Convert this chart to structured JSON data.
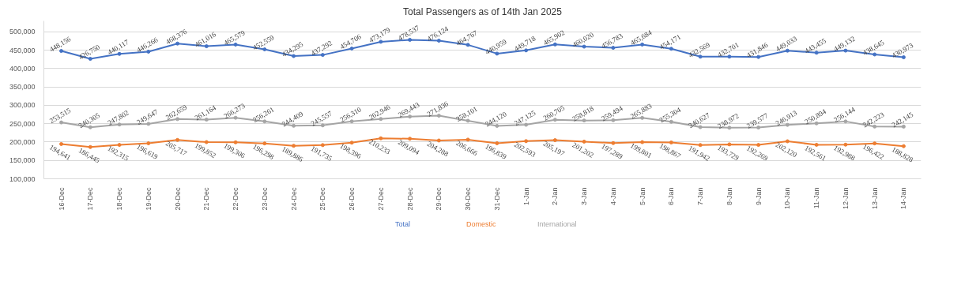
{
  "chart_data": {
    "type": "line",
    "title": "Total Passengers as of 14th Jan 2025",
    "categories": [
      "16-Dec",
      "17-Dec",
      "18-Dec",
      "19-Dec",
      "20-Dec",
      "21-Dec",
      "22-Dec",
      "23-Dec",
      "24-Dec",
      "25-Dec",
      "26-Dec",
      "27-Dec",
      "28-Dec",
      "29-Dec",
      "30-Dec",
      "31-Dec",
      "1-Jan",
      "2-Jan",
      "3-Jan",
      "4-Jan",
      "5-Jan",
      "6-Jan",
      "7-Jan",
      "8-Jan",
      "9-Jan",
      "10-Jan",
      "11-Jan",
      "12-Jan",
      "13-Jan",
      "14-Jan"
    ],
    "series": [
      {
        "name": "Total",
        "color": "#4472c4",
        "values": [
          448156,
          426750,
          440117,
          446266,
          468376,
          461016,
          465579,
          452559,
          434295,
          437292,
          454706,
          473179,
          478537,
          476124,
          464767,
          440959,
          449718,
          465902,
          460020,
          456783,
          465684,
          454171,
          432569,
          432701,
          431846,
          449033,
          443455,
          449132,
          438645,
          430973
        ],
        "value_labels": [
          "448,156",
          "426,750",
          "440,117",
          "446,266",
          "468,376",
          "461,016",
          "465,579",
          "452,559",
          "434,295",
          "437,292",
          "454,706",
          "473,179",
          "478,537",
          "476,124",
          "464,767",
          "440,959",
          "449,718",
          "465,902",
          "460,020",
          "456,783",
          "465,684",
          "454,171",
          "432,569",
          "432,701",
          "431,846",
          "449,033",
          "443,455",
          "449,132",
          "438,645",
          "430,973"
        ]
      },
      {
        "name": "Domestic",
        "color": "#ed7d31",
        "values": [
          194641,
          186445,
          192315,
          196619,
          205717,
          199852,
          199306,
          196298,
          189886,
          191735,
          198396,
          210233,
          209094,
          204288,
          206666,
          196839,
          202593,
          205197,
          201202,
          197289,
          199801,
          198867,
          191942,
          193729,
          192269,
          202120,
          192561,
          192988,
          196422,
          188828
        ],
        "value_labels": [
          "194,641",
          "186,445",
          "192,315",
          "196,619",
          "205,717",
          "199,852",
          "199,306",
          "196,298",
          "189,886",
          "191,735",
          "198,396",
          "210,233",
          "209,094",
          "204,288",
          "206,666",
          "196,839",
          "202,593",
          "205,197",
          "201,202",
          "197,289",
          "199,801",
          "198,867",
          "191,942",
          "193,729",
          "192,269",
          "202,120",
          "192,561",
          "192,988",
          "196,422",
          "188,828"
        ]
      },
      {
        "name": "International",
        "color": "#a5a5a5",
        "values": [
          253515,
          240305,
          247802,
          249647,
          262659,
          261164,
          266273,
          256261,
          244409,
          245557,
          256310,
          262946,
          269443,
          271836,
          258101,
          244120,
          247125,
          260705,
          258818,
          259494,
          265883,
          255304,
          240627,
          238972,
          239577,
          246913,
          250894,
          256144,
          242223,
          242145
        ],
        "value_labels": [
          "253,515",
          "240,305",
          "247,802",
          "249,647",
          "262,659",
          "261,164",
          "266,273",
          "256,261",
          "244,409",
          "245,557",
          "256,310",
          "262,946",
          "269,443",
          "271,836",
          "258,101",
          "244,120",
          "247,125",
          "260,705",
          "258,818",
          "259,494",
          "265,883",
          "255,304",
          "240,627",
          "238,972",
          "239,577",
          "246,913",
          "250,894",
          "256,144",
          "242,223",
          "242,145"
        ]
      }
    ],
    "ylim": [
      100000,
      530000
    ],
    "yticks": [
      {
        "value": 100000,
        "label": "100,000"
      },
      {
        "value": 150000,
        "label": "150,000"
      },
      {
        "value": 200000,
        "label": "200,000"
      },
      {
        "value": 250000,
        "label": "250,000"
      },
      {
        "value": 300000,
        "label": "300,000"
      },
      {
        "value": 350000,
        "label": "350,000"
      },
      {
        "value": 400000,
        "label": "400,000"
      },
      {
        "value": 450000,
        "label": "450,000"
      },
      {
        "value": 500000,
        "label": "500,000"
      }
    ],
    "grid": "y",
    "legend": "bottom",
    "marker": "circle",
    "line_style": "solid"
  }
}
